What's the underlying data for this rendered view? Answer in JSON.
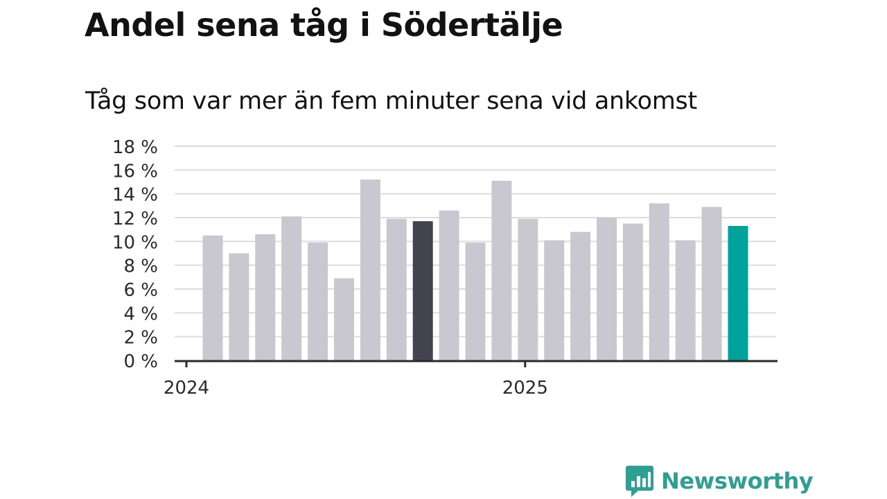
{
  "chart_data": {
    "type": "bar",
    "title": "Andel sena tåg i Södertälje",
    "subtitle": "Tåg som var mer än fem minuter sena vid ankomst",
    "xlabel": "",
    "ylabel": "",
    "ylim": [
      0,
      18
    ],
    "yticks": [
      0,
      2,
      4,
      6,
      8,
      10,
      12,
      14,
      16,
      18
    ],
    "ytick_labels": [
      "0 %",
      "2 %",
      "4 %",
      "6 %",
      "8 %",
      "10 %",
      "12 %",
      "14 %",
      "16 %",
      "18 %"
    ],
    "xtick_labels": [
      {
        "label": "2024",
        "index": 0
      },
      {
        "label": "2025",
        "index": 12
      }
    ],
    "grid": true,
    "values": [
      10.5,
      9.0,
      10.6,
      12.1,
      9.9,
      6.9,
      15.2,
      11.9,
      11.7,
      12.6,
      9.9,
      15.1,
      11.9,
      10.1,
      10.8,
      12.0,
      11.5,
      13.2,
      10.1,
      12.9,
      11.3
    ],
    "colors": {
      "default": "#c9c8d0",
      "highlight_last_year": "#43434f",
      "current": "#00a39b"
    },
    "highlight_last_year_index": 8,
    "current_index": 20
  },
  "logo": {
    "text": "Newsworthy",
    "icon": "newsworthy-logo-icon",
    "color": "#2e9f93"
  }
}
